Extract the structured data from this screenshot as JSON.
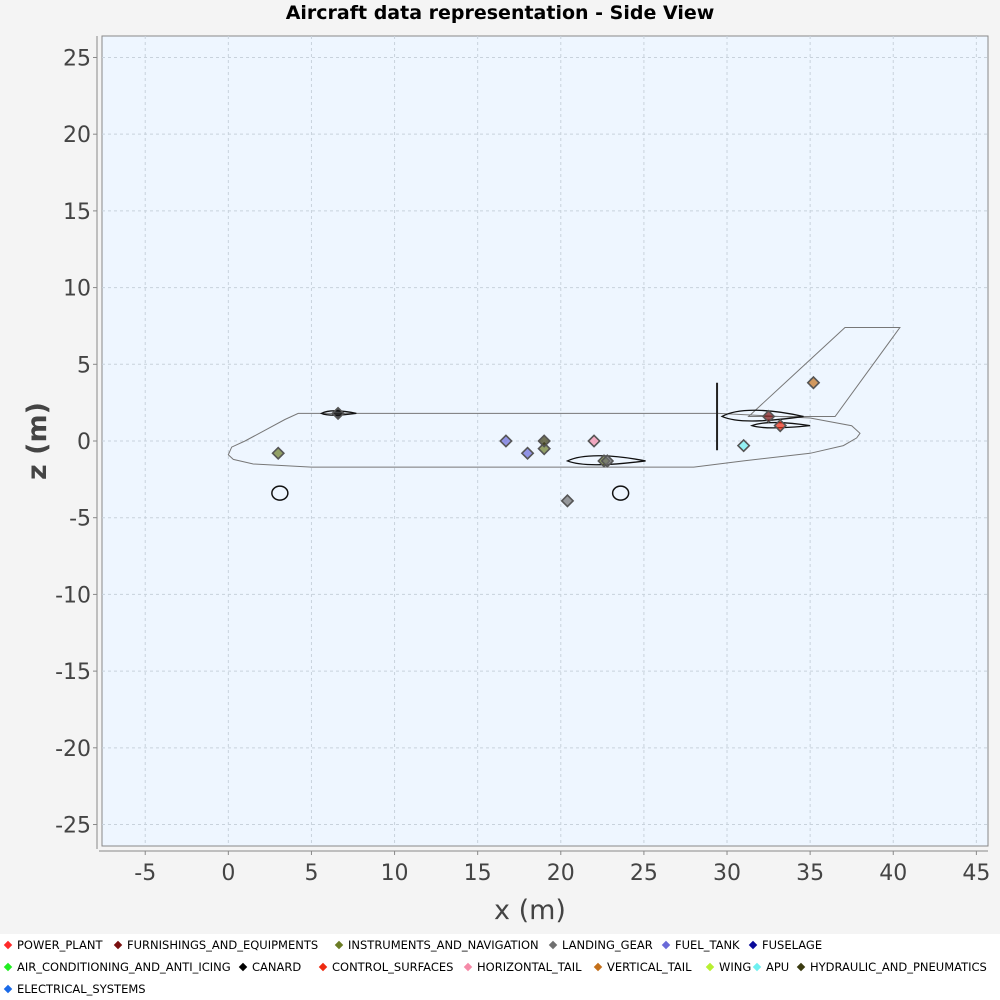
{
  "chart_data": {
    "type": "scatter",
    "title": "Aircraft data representation - Side View",
    "xlabel": "x (m)",
    "ylabel": "z (m)",
    "xlim": [
      -7.6,
      45.7
    ],
    "ylim": [
      -26.4,
      26.4
    ],
    "xticks": [
      -5,
      0,
      5,
      10,
      15,
      20,
      25,
      30,
      35,
      40,
      45
    ],
    "yticks": [
      25,
      20,
      15,
      10,
      5,
      0,
      -5,
      -10,
      -15,
      -20,
      -25
    ],
    "grid": true,
    "background": "#eef6ff",
    "legend_position": "bottom",
    "series": [
      {
        "name": "POWER_PLANT",
        "color": "#ff2a2a",
        "points": []
      },
      {
        "name": "FURNISHINGS_AND_EQUIPMENTS",
        "color": "#7a1010",
        "points": [
          [
            32.5,
            1.6
          ]
        ]
      },
      {
        "name": "INSTRUMENTS_AND_NAVIGATION",
        "color": "#6b7c25",
        "points": [
          [
            3.0,
            -0.8
          ],
          [
            19.0,
            -0.5
          ],
          [
            22.6,
            -1.3
          ]
        ]
      },
      {
        "name": "LANDING_GEAR",
        "color": "#707070",
        "points": [
          [
            20.4,
            -3.9
          ],
          [
            22.8,
            -1.3
          ]
        ]
      },
      {
        "name": "FUEL_TANK",
        "color": "#6a6ad8",
        "points": [
          [
            16.7,
            0.0
          ],
          [
            18.0,
            -0.8
          ]
        ]
      },
      {
        "name": "FUSELAGE",
        "color": "#0a0a9a",
        "points": []
      },
      {
        "name": "AIR_CONDITIONING_AND_ANTI_ICING",
        "color": "#22ee22",
        "points": []
      },
      {
        "name": "CANARD",
        "color": "#000000",
        "points": [
          [
            6.6,
            1.8
          ]
        ]
      },
      {
        "name": "CONTROL_SURFACES",
        "color": "#ee2a10",
        "points": [
          [
            33.2,
            1.0
          ]
        ]
      },
      {
        "name": "HORIZONTAL_TAIL",
        "color": "#f58aa8",
        "points": [
          [
            22.0,
            0.0
          ]
        ]
      },
      {
        "name": "VERTICAL_TAIL",
        "color": "#c4701a",
        "points": [
          [
            35.2,
            3.8
          ]
        ]
      },
      {
        "name": "WING",
        "color": "#b8f030",
        "points": []
      },
      {
        "name": "APU",
        "color": "#6ef0f0",
        "points": [
          [
            31.0,
            -0.3
          ]
        ]
      },
      {
        "name": "HYDRAULIC_AND_PNEUMATICS",
        "color": "#3a3a10",
        "points": [
          [
            19.0,
            0.0
          ]
        ]
      },
      {
        "name": "ELECTRICAL_SYSTEMS",
        "color": "#1a6ae8",
        "points": []
      }
    ],
    "outline": {
      "fuselage": [
        [
          4.2,
          1.8
        ],
        [
          29.5,
          1.8
        ],
        [
          35.0,
          1.5
        ],
        [
          37.5,
          1.0
        ],
        [
          38.0,
          0.5
        ],
        [
          37.8,
          0.2
        ],
        [
          37.0,
          -0.3
        ],
        [
          35.0,
          -0.8
        ],
        [
          31.0,
          -1.3
        ],
        [
          28.0,
          -1.7
        ],
        [
          5.0,
          -1.7
        ],
        [
          1.5,
          -1.5
        ],
        [
          0.3,
          -1.2
        ],
        [
          0.0,
          -0.9
        ],
        [
          0.2,
          -0.4
        ],
        [
          1.0,
          0.0
        ],
        [
          2.2,
          0.7
        ],
        [
          3.4,
          1.4
        ]
      ],
      "vertical_tail": [
        [
          31.3,
          1.6
        ],
        [
          37.1,
          7.4
        ],
        [
          40.4,
          7.4
        ],
        [
          36.5,
          1.6
        ]
      ],
      "nose_gear": [
        3.1,
        -3.4
      ],
      "main_gear": [
        23.6,
        -3.4
      ],
      "bulkhead": [
        29.4,
        3.8,
        -0.6
      ]
    }
  }
}
